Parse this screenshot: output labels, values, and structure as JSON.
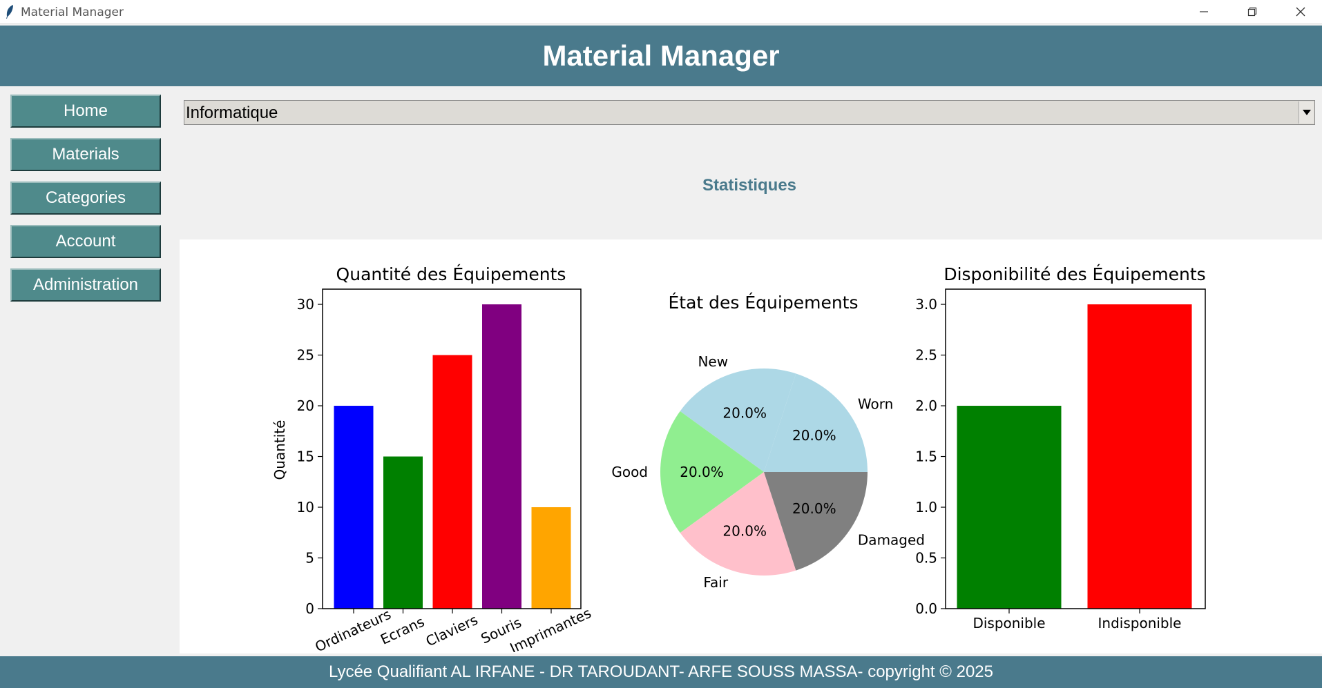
{
  "window": {
    "title": "Material Manager"
  },
  "header": {
    "title": "Material Manager"
  },
  "nav": {
    "items": [
      {
        "label": "Home"
      },
      {
        "label": "Materials"
      },
      {
        "label": "Categories"
      },
      {
        "label": "Account"
      },
      {
        "label": "Administration"
      }
    ]
  },
  "category_select": {
    "value": "Informatique"
  },
  "section": {
    "title": "Statistiques"
  },
  "footer": {
    "text": "Lycée Qualifiant AL IRFANE - DR TAROUDANT- ARFE SOUSS MASSA-  copyright © 2025"
  },
  "chart_data": [
    {
      "type": "bar",
      "title": "Quantité des Équipements",
      "ylabel": "Quantité",
      "categories": [
        "Ordinateurs",
        "Ecrans",
        "Claviers",
        "Souris",
        "Imprimantes"
      ],
      "values": [
        20,
        15,
        25,
        30,
        10
      ],
      "colors": [
        "#0000ff",
        "#008000",
        "#ff0000",
        "#800080",
        "#ffa500"
      ],
      "ylim": [
        0,
        31.5
      ],
      "yticks": [
        "0",
        "5",
        "10",
        "15",
        "20",
        "25",
        "30"
      ]
    },
    {
      "type": "pie",
      "title": "État des Équipements",
      "labels": [
        "New",
        "Good",
        "Fair",
        "Damaged",
        "Worn"
      ],
      "values": [
        20.0,
        20.0,
        20.0,
        20.0,
        20.0
      ],
      "pct_labels": [
        "20.0%",
        "20.0%",
        "20.0%",
        "20.0%",
        "20.0%"
      ],
      "colors": [
        "#add8e6",
        "#90ee90",
        "#ffc0cb",
        "#808080",
        "#add8e6"
      ]
    },
    {
      "type": "bar",
      "title": "Disponibilité des Équipements",
      "categories": [
        "Disponible",
        "Indisponible"
      ],
      "values": [
        2,
        3
      ],
      "colors": [
        "#008000",
        "#ff0000"
      ],
      "ylim": [
        0,
        3.15
      ],
      "yticks": [
        "0.0",
        "0.5",
        "1.0",
        "1.5",
        "2.0",
        "2.5",
        "3.0"
      ]
    }
  ]
}
